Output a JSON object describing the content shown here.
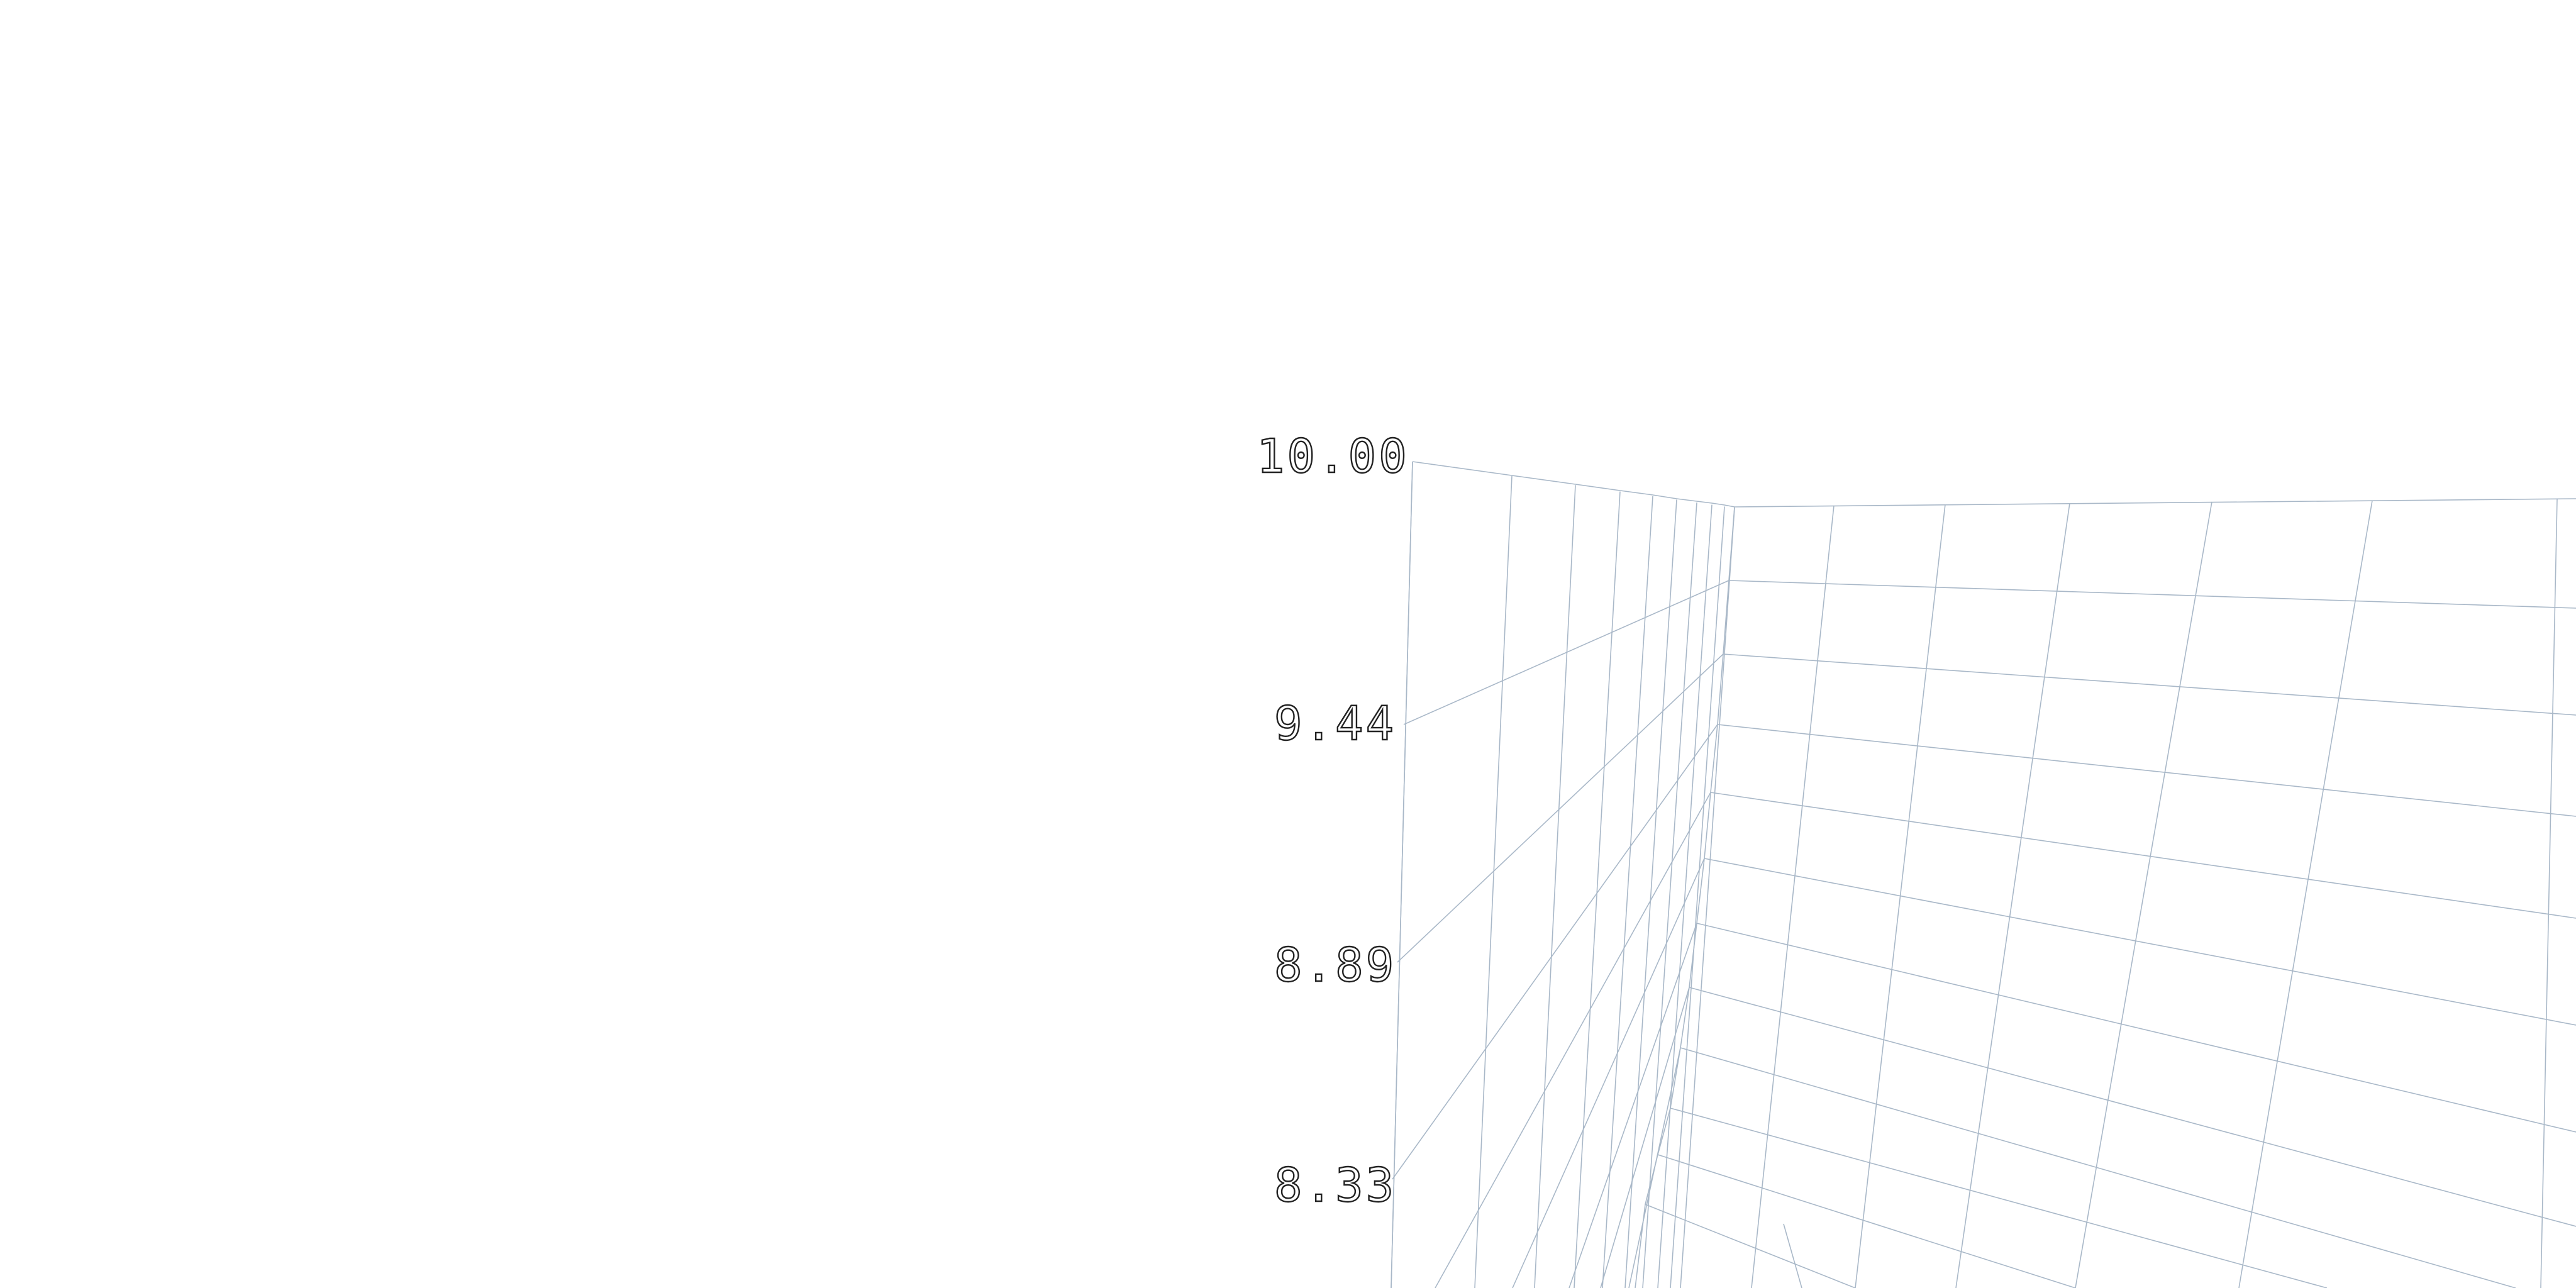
{
  "chart_data": {
    "type": "surface",
    "axis": "z",
    "z_ticks": [
      "10.00",
      "9.44",
      "8.89",
      "8.33"
    ],
    "zlim": [
      8.33,
      10.0
    ],
    "grid": true,
    "mesh_color": "#a9b8c8",
    "tick_label_color": "#222222",
    "background_color": "#ffffff"
  }
}
